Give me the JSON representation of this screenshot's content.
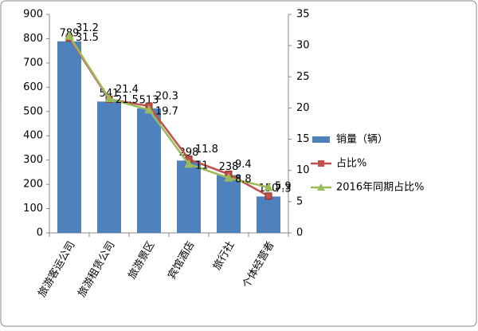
{
  "chart_data": {
    "type": "bar-line",
    "categories": [
      "旅游客运公司",
      "旅游租赁公司",
      "旅游景区",
      "宾馆酒店",
      "旅行社",
      "个体经营者"
    ],
    "series": [
      {
        "name": "销量（辆）",
        "color": "#4f81bd",
        "type": "bar",
        "values": [
          789,
          541,
          513,
          298,
          238,
          150
        ]
      },
      {
        "name": "占比%",
        "color": "#c0504d",
        "type": "line",
        "marker": "square",
        "axis": "y2",
        "values": [
          31.2,
          21.4,
          20.3,
          11.8,
          9.4,
          5.9
        ]
      },
      {
        "name": "2016年同期占比%",
        "color": "#9bbb59",
        "type": "line",
        "marker": "triangle",
        "axis": "y2",
        "values": [
          31.5,
          21.5,
          19.7,
          11.0,
          8.8,
          7.3
        ]
      }
    ],
    "ylim": [
      0,
      900
    ],
    "yticks": [
      0,
      100,
      200,
      300,
      400,
      500,
      600,
      700,
      800,
      900
    ],
    "y2lim": [
      0,
      35
    ],
    "y2ticks": [
      0,
      5,
      10,
      15,
      20,
      25,
      30,
      35
    ],
    "legend": "right"
  }
}
